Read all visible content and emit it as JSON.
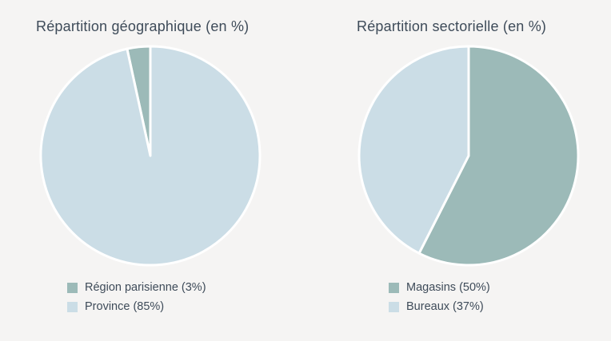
{
  "page": {
    "background_color": "#f5f4f3",
    "text_color": "#3e4b59"
  },
  "chart_data": [
    {
      "type": "pie",
      "title": "Répartition géographique (en %)",
      "unit": "percent",
      "legend_position": "bottom",
      "start_at": "12-oclock",
      "direction": "clockwise",
      "categories": [
        "Région parisienne",
        "Province"
      ],
      "values": [
        3,
        85
      ],
      "slices": [
        {
          "label": "Région parisienne",
          "value": 3,
          "legend_label": "Région parisienne (3%)",
          "color": "#9cbab8",
          "start_deg": 347.73,
          "end_deg": 360
        },
        {
          "label": "Province",
          "value": 85,
          "legend_label": "Province (85%)",
          "color": "#cbdde6",
          "start_deg": 0,
          "end_deg": 347.73
        }
      ]
    },
    {
      "type": "pie",
      "title": "Répartition sectorielle (en %)",
      "unit": "percent",
      "legend_position": "bottom",
      "start_at": "12-oclock",
      "direction": "clockwise",
      "categories": [
        "Magasins",
        "Bureaux"
      ],
      "values": [
        50,
        37
      ],
      "slices": [
        {
          "label": "Magasins",
          "value": 50,
          "legend_label": "Magasins (50%)",
          "color": "#9cbab8",
          "start_deg": 0,
          "end_deg": 206.9
        },
        {
          "label": "Bureaux",
          "value": 37,
          "legend_label": "Bureaux (37%)",
          "color": "#cbdde6",
          "start_deg": 206.9,
          "end_deg": 360
        }
      ]
    }
  ]
}
